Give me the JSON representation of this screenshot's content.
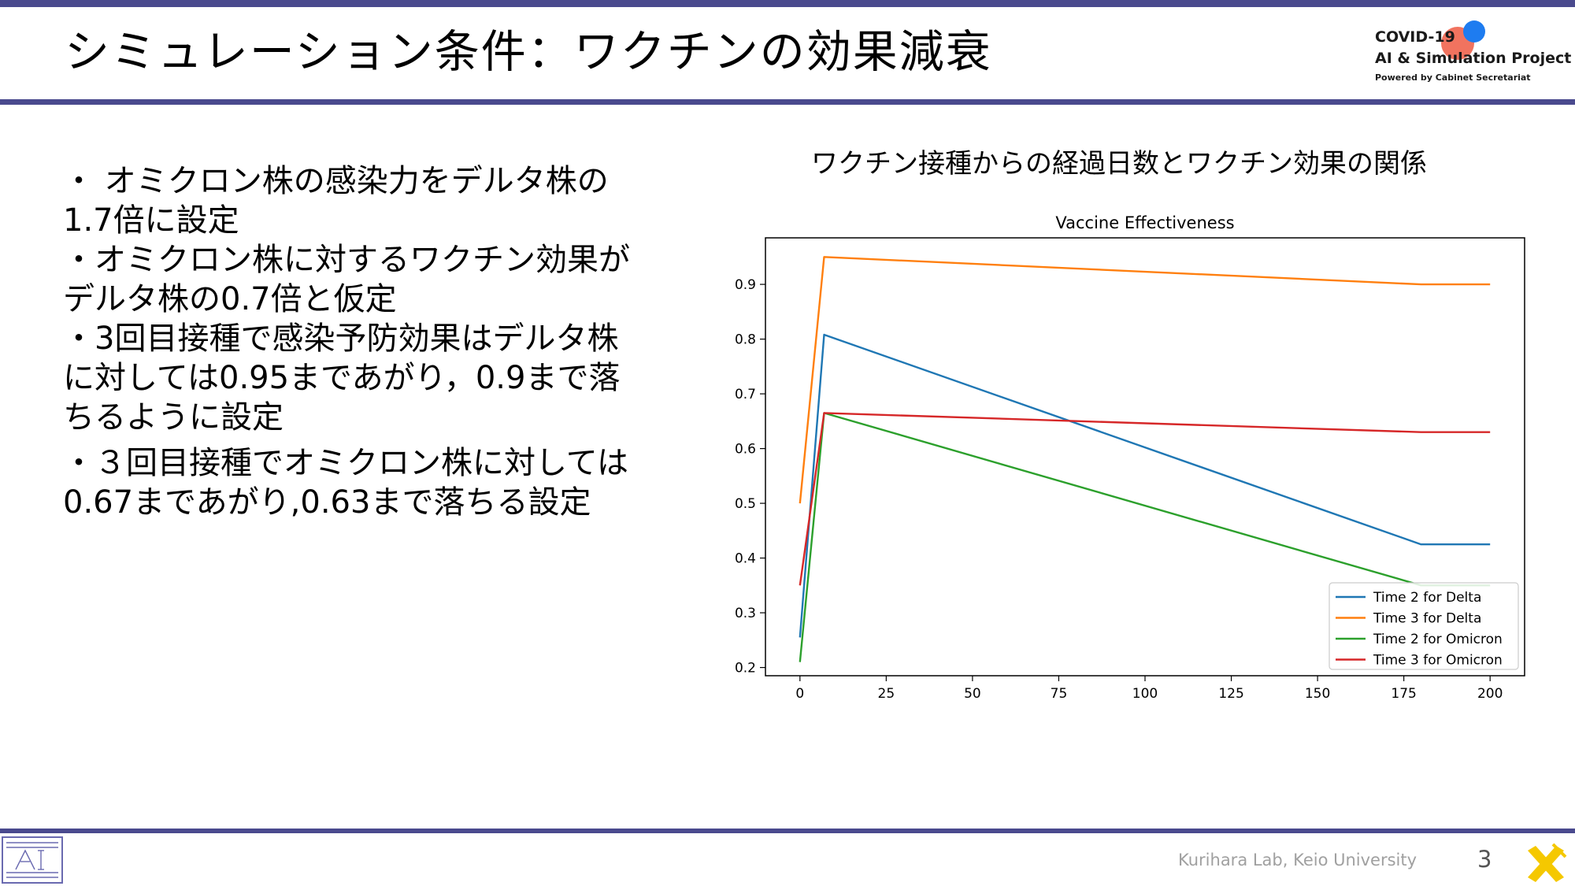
{
  "slide": {
    "title": "シミュレーション条件：ワクチンの効果減衰",
    "page_number": "3",
    "footer_credit": "Kurihara Lab, Keio University"
  },
  "logo": {
    "line1": "COVID-19",
    "line2": "AI & Simulation Project",
    "line3": "Powered by Cabinet Secretariat"
  },
  "bullets": [
    "・ オミクロン株の感染力をデルタ株の1.7倍に設定",
    "・オミクロン株に対するワクチン効果がデルタ株の0.7倍と仮定",
    "・3回目接種で感染予防効果はデルタ株に対しては0.95まであがり，0.9まで落ちるように設定",
    "・３回目接種でオミクロン株に対しては0.67まであがり,0.63まで落ちる設定"
  ],
  "chart_heading": "ワクチン接種からの経過日数とワクチン効果の関係",
  "chart_data": {
    "type": "line",
    "title": "Vaccine Effectiveness",
    "xlabel": "",
    "ylabel": "",
    "xlim": [
      -10,
      210
    ],
    "ylim": [
      0.185,
      0.985
    ],
    "xticks": [
      0,
      25,
      50,
      75,
      100,
      125,
      150,
      175,
      200
    ],
    "yticks": [
      0.2,
      0.3,
      0.4,
      0.5,
      0.6,
      0.7,
      0.8,
      0.9
    ],
    "grid": false,
    "legend_position": "lower-right",
    "series": [
      {
        "name": "Time 2 for Delta",
        "color": "#1f77b4",
        "x": [
          0,
          7,
          180,
          200
        ],
        "y": [
          0.255,
          0.808,
          0.425,
          0.425
        ]
      },
      {
        "name": "Time 3 for Delta",
        "color": "#ff7f0e",
        "x": [
          0,
          7,
          180,
          200
        ],
        "y": [
          0.5,
          0.95,
          0.9,
          0.9
        ]
      },
      {
        "name": "Time 2 for Omicron",
        "color": "#2ca02c",
        "x": [
          0,
          7,
          180,
          200
        ],
        "y": [
          0.21,
          0.665,
          0.35,
          0.35
        ]
      },
      {
        "name": "Time 3 for Omicron",
        "color": "#d62728",
        "x": [
          0,
          7,
          180,
          200
        ],
        "y": [
          0.35,
          0.665,
          0.63,
          0.63
        ]
      }
    ]
  }
}
